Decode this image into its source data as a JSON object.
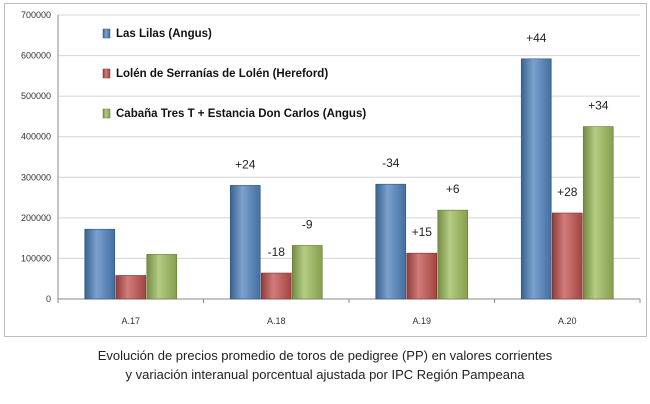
{
  "chart_data": {
    "type": "bar",
    "categories": [
      "A.17",
      "A.18",
      "A.19",
      "A.20"
    ],
    "series": [
      {
        "name": "Las Lilas (Angus)",
        "color": "#4f81bd",
        "values": [
          172000,
          280000,
          283000,
          592000
        ],
        "labels": [
          "",
          "+24",
          "-34",
          "+44"
        ]
      },
      {
        "name": "Lolén de Serranías de Lolén (Hereford)",
        "color": "#c0504d",
        "values": [
          58000,
          64000,
          113000,
          212000
        ],
        "labels": [
          "",
          "-18",
          "+15",
          "+28"
        ]
      },
      {
        "name": "Cabaña Tres T + Estancia Don Carlos (Angus)",
        "color": "#9bbb59",
        "values": [
          110000,
          132000,
          219000,
          425000
        ],
        "labels": [
          "",
          "-9",
          "+6",
          "+34"
        ]
      }
    ],
    "ylim": [
      0,
      700000
    ],
    "yticks": [
      0,
      100000,
      200000,
      300000,
      400000,
      500000,
      600000,
      700000
    ],
    "ytick_labels": [
      "0",
      "100000",
      "200000",
      "300000",
      "400000",
      "500000",
      "600000",
      "700000"
    ],
    "grid": true,
    "legend_position": "top-left"
  },
  "caption": {
    "line1": "Evolución de precios promedio de toros de pedigree (PP) en valores corrientes",
    "line2": "y variación interanual porcentual ajustada por IPC Región Pampeana"
  }
}
